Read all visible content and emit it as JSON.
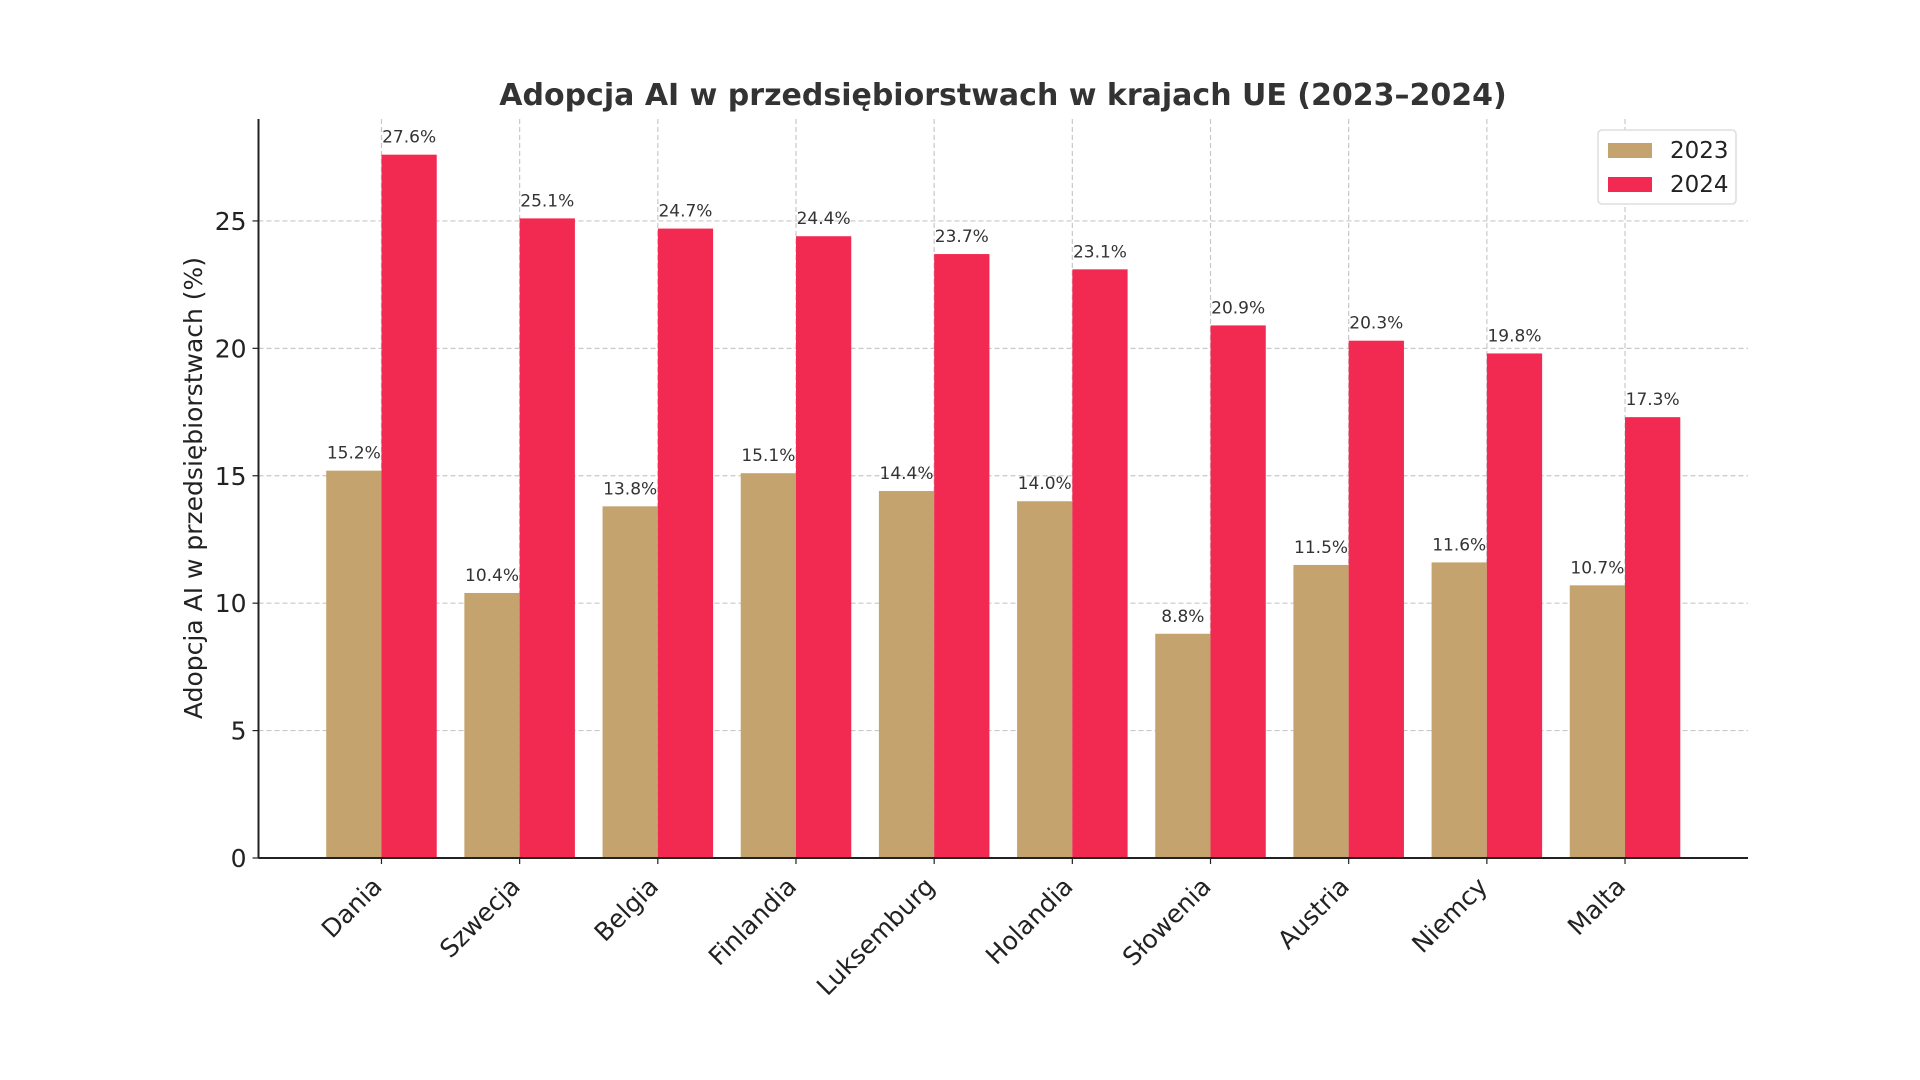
{
  "chart_data": {
    "type": "bar",
    "title": "Adopcja AI w przedsiębiorstwach w krajach UE (2023–2024)",
    "xlabel": "",
    "ylabel": "Adopcja AI w przedsiębiorstwach (%)",
    "categories": [
      "Dania",
      "Szwecja",
      "Belgia",
      "Finlandia",
      "Luksemburg",
      "Holandia",
      "Słowenia",
      "Austria",
      "Niemcy",
      "Malta"
    ],
    "series": [
      {
        "name": "2023",
        "color": "#c4a36f",
        "values": [
          15.2,
          10.4,
          13.8,
          15.1,
          14.4,
          14.0,
          8.8,
          11.5,
          11.6,
          10.7
        ]
      },
      {
        "name": "2024",
        "color": "#f22a52",
        "values": [
          27.6,
          25.1,
          24.7,
          24.4,
          23.7,
          23.1,
          20.9,
          20.3,
          19.8,
          17.3
        ]
      }
    ],
    "data_label_suffix": "%",
    "ylim": [
      0,
      29
    ],
    "yticks": [
      0,
      5,
      10,
      15,
      20,
      25
    ],
    "grid": true,
    "legend": "top-right"
  }
}
